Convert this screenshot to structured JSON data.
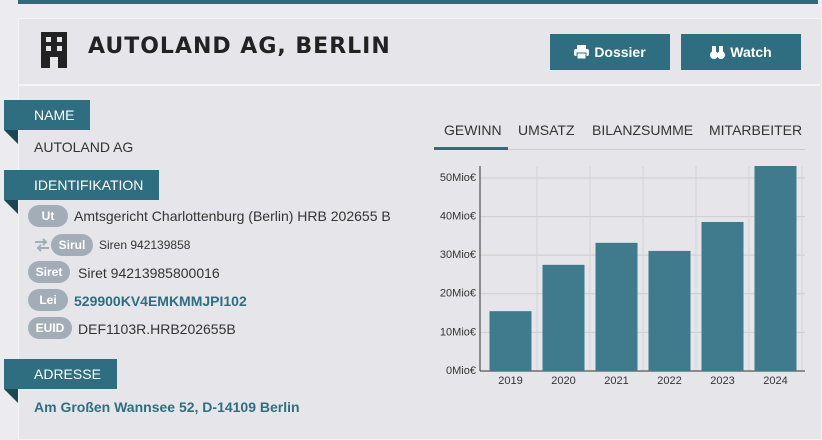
{
  "header": {
    "title": "AUTOLAND AG, BERLIN",
    "buttons": [
      "Dossier",
      "Watch"
    ]
  },
  "sections": [
    {
      "label": "NAME",
      "value": "AUTOLAND AG"
    },
    {
      "label": "IDENTIFIKATION",
      "rows": [
        {
          "badge": "Ut",
          "text": "Amtsgericht Charlottenburg (Berlin) HRB 202655 B"
        },
        {
          "badge": "Sirul",
          "text": "Siren 942139858"
        },
        {
          "badge": "Siret",
          "text": "Siret 94213985800016"
        },
        {
          "badge": "Lei",
          "text": "529900KV4EMKMMJPI102"
        },
        {
          "badge": "EUID",
          "text": "DEF1103R.HRB202655B"
        }
      ]
    },
    {
      "label": "ADRESSE",
      "value": "Am Großen Wannsee 52, D-14109 Berlin"
    }
  ],
  "tabs": [
    "GEWINN",
    "UMSATZ",
    "BILANZSUMME",
    "MITARBEITER"
  ],
  "chart_data": {
    "type": "bar",
    "categories": [
      "2019",
      "2020",
      "2021",
      "2022",
      "2023",
      "2024"
    ],
    "values": [
      15.5,
      27.5,
      33.2,
      31.1,
      38.6,
      53.1
    ],
    "color": "#3f7b8d",
    "ylim": [
      0,
      53.1
    ],
    "yticks": [
      {
        "value": 0,
        "label": "0Mio€"
      },
      {
        "value": 10,
        "label": "10Mio€"
      },
      {
        "value": 20,
        "label": "20Mio€"
      },
      {
        "value": 30,
        "label": "30Mio€"
      },
      {
        "value": 40,
        "label": "40Mio€"
      },
      {
        "value": 50,
        "label": "50Mio€"
      }
    ],
    "grid": true
  }
}
